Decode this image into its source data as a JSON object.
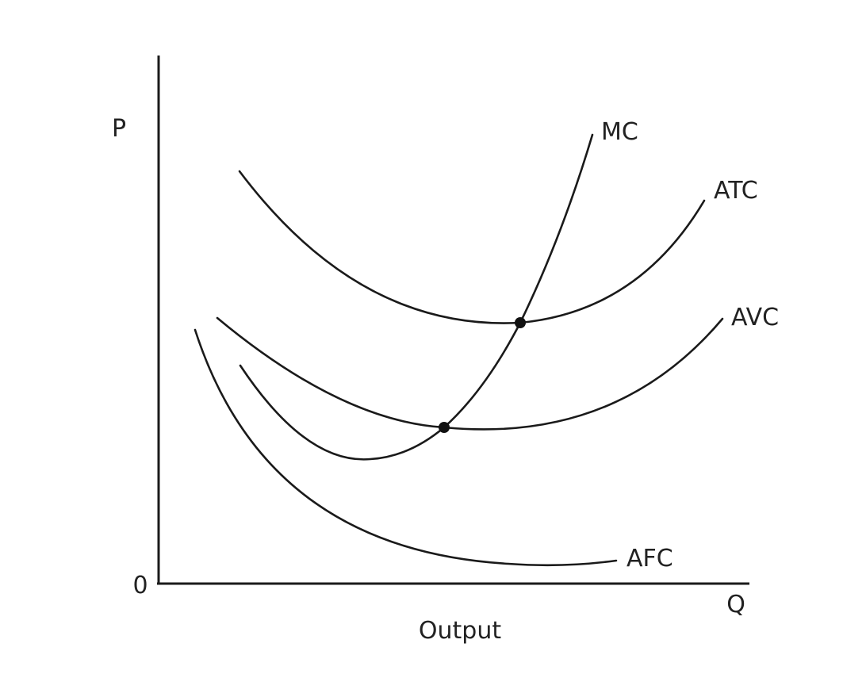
{
  "axes": {
    "y_label": "P",
    "x_label": "Q",
    "origin_label": "0",
    "x_title": "Output"
  },
  "curves": [
    {
      "id": "mc",
      "label": "MC"
    },
    {
      "id": "atc",
      "label": "ATC"
    },
    {
      "id": "avc",
      "label": "AVC"
    },
    {
      "id": "afc",
      "label": "AFC"
    }
  ],
  "intersections": [
    {
      "curves": [
        "MC",
        "ATC"
      ],
      "description": "MC crosses ATC at its minimum"
    },
    {
      "curves": [
        "MC",
        "AVC"
      ],
      "description": "MC crosses AVC at its minimum"
    }
  ]
}
